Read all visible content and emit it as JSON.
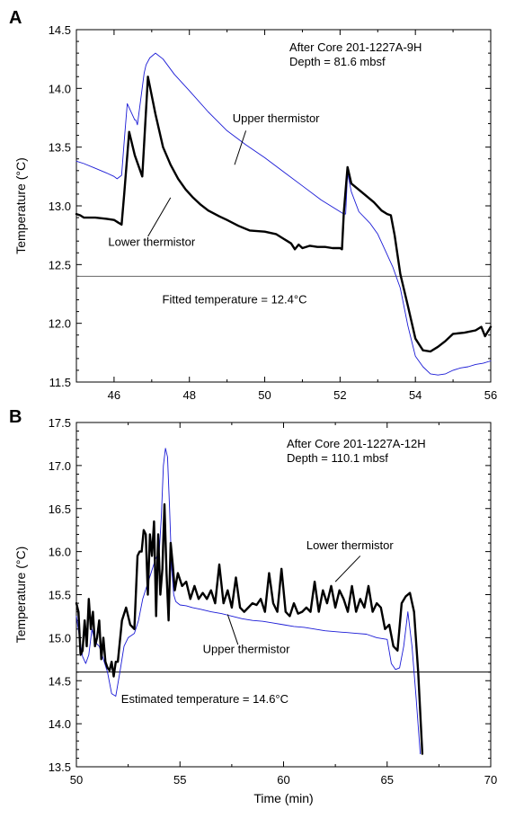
{
  "chart_data": [
    {
      "type": "line",
      "panel_label": "A",
      "ylabel": "Temperature (°C)",
      "xlabel": "",
      "xlim": [
        45,
        56
      ],
      "ylim": [
        11.5,
        14.5
      ],
      "xticks": [
        46,
        48,
        50,
        52,
        54,
        56
      ],
      "yticks": [
        11.5,
        12.0,
        12.5,
        13.0,
        13.5,
        14.0,
        14.5
      ],
      "xtick_labels": [
        "46",
        "48",
        "50",
        "52",
        "54",
        "56"
      ],
      "ytick_labels": [
        "11.5",
        "12.0",
        "12.5",
        "13.0",
        "13.5",
        "14.0",
        "14.5"
      ],
      "info_lines": [
        "After Core 201-1227A-9H",
        "Depth = 81.6 mbsf"
      ],
      "grid": false,
      "reference_line": {
        "y": 12.4,
        "color": "#666666"
      },
      "annotations": [
        {
          "text": "Upper thermistor",
          "x": 50.3,
          "y": 13.71
        },
        {
          "text": "Lower thermistor",
          "x": 47.0,
          "y": 12.66
        },
        {
          "text": "Fitted temperature = 12.4°C",
          "x": 49.2,
          "y": 12.17
        }
      ],
      "leaders": [
        {
          "from": [
            49.5,
            13.64
          ],
          "to": [
            49.2,
            13.35
          ]
        },
        {
          "from": [
            46.9,
            12.74
          ],
          "to": [
            47.5,
            13.07
          ]
        }
      ],
      "series": [
        {
          "color": "#1a1ad6",
          "width": 0.9,
          "x": [
            45.0,
            45.2,
            45.5,
            45.8,
            46.0,
            46.08,
            46.2,
            46.27,
            46.35,
            46.55,
            46.58,
            46.62,
            46.8,
            46.85,
            46.95,
            47.1,
            47.3,
            47.6,
            48.0,
            48.5,
            49.0,
            49.5,
            50.0,
            50.5,
            51.0,
            51.5,
            52.0,
            52.1,
            52.15,
            52.2,
            52.3,
            52.5,
            52.8,
            53.0,
            53.2,
            53.4,
            53.6,
            53.8,
            54.0,
            54.2,
            54.4,
            54.6,
            54.8,
            55.0,
            55.2,
            55.4,
            55.6,
            55.8,
            56.0
          ],
          "y": [
            13.38,
            13.36,
            13.32,
            13.28,
            13.25,
            13.23,
            13.26,
            13.55,
            13.87,
            13.73,
            13.73,
            13.69,
            14.13,
            14.2,
            14.26,
            14.3,
            14.25,
            14.12,
            13.98,
            13.8,
            13.64,
            13.52,
            13.41,
            13.29,
            13.17,
            13.05,
            12.95,
            12.93,
            12.93,
            13.28,
            13.12,
            12.95,
            12.85,
            12.76,
            12.62,
            12.48,
            12.3,
            11.98,
            11.72,
            11.63,
            11.57,
            11.56,
            11.57,
            11.6,
            11.62,
            11.63,
            11.65,
            11.66,
            11.68
          ]
        },
        {
          "color": "#000000",
          "width": 2.4,
          "x": [
            45.0,
            45.1,
            45.2,
            45.5,
            45.8,
            46.0,
            46.1,
            46.2,
            46.27,
            46.4,
            46.55,
            46.75,
            46.9,
            47.1,
            47.3,
            47.5,
            47.7,
            47.9,
            48.1,
            48.3,
            48.5,
            48.8,
            49.0,
            49.3,
            49.6,
            50.0,
            50.3,
            50.5,
            50.6,
            50.7,
            50.8,
            50.9,
            51.0,
            51.2,
            51.4,
            51.6,
            51.8,
            52.0,
            52.05,
            52.1,
            52.2,
            52.3,
            52.6,
            52.9,
            53.1,
            53.25,
            53.35,
            53.45,
            53.6,
            53.8,
            54.0,
            54.2,
            54.4,
            54.6,
            54.8,
            55.0,
            55.3,
            55.6,
            55.75,
            55.85,
            56.0
          ],
          "y": [
            12.93,
            12.92,
            12.9,
            12.9,
            12.89,
            12.88,
            12.86,
            12.84,
            13.1,
            13.63,
            13.43,
            13.25,
            14.1,
            13.78,
            13.5,
            13.35,
            13.23,
            13.14,
            13.07,
            13.01,
            12.96,
            12.91,
            12.88,
            12.83,
            12.79,
            12.78,
            12.76,
            12.72,
            12.7,
            12.68,
            12.63,
            12.67,
            12.64,
            12.66,
            12.65,
            12.65,
            12.64,
            12.64,
            12.63,
            12.95,
            13.33,
            13.19,
            13.11,
            13.03,
            12.96,
            12.93,
            12.92,
            12.75,
            12.42,
            12.15,
            11.87,
            11.77,
            11.76,
            11.8,
            11.85,
            11.91,
            11.92,
            11.94,
            11.97,
            11.89,
            11.97
          ]
        }
      ]
    },
    {
      "type": "line",
      "panel_label": "B",
      "ylabel": "Temperature (°C)",
      "xlabel": "Time (min)",
      "xlim": [
        50,
        70
      ],
      "ylim": [
        13.5,
        17.5
      ],
      "xticks": [
        50,
        55,
        60,
        65,
        70
      ],
      "yticks": [
        13.5,
        14.0,
        14.5,
        15.0,
        15.5,
        16.0,
        16.5,
        17.0,
        17.5
      ],
      "xtick_labels": [
        "50",
        "55",
        "60",
        "65",
        "70"
      ],
      "ytick_labels": [
        "13.5",
        "14.0",
        "14.5",
        "15.0",
        "15.5",
        "16.0",
        "16.5",
        "17.0",
        "17.5"
      ],
      "info_lines": [
        "After Core 201-1227A-12H",
        "Depth = 110.1 mbsf"
      ],
      "grid": false,
      "reference_line": {
        "y": 14.6,
        "color": "#000000"
      },
      "annotations": [
        {
          "text": "Lower thermistor",
          "x": 63.2,
          "y": 16.03
        },
        {
          "text": "Upper thermistor",
          "x": 58.2,
          "y": 14.82
        },
        {
          "text": "Estimated temperature = 14.6°C",
          "x": 56.2,
          "y": 14.24
        }
      ],
      "leaders": [
        {
          "from": [
            63.7,
            15.95
          ],
          "to": [
            62.5,
            15.65
          ]
        },
        {
          "from": [
            57.8,
            14.92
          ],
          "to": [
            57.3,
            15.27
          ]
        }
      ],
      "series": [
        {
          "color": "#1a1ad6",
          "width": 0.9,
          "x": [
            50.0,
            50.15,
            50.3,
            50.45,
            50.6,
            50.75,
            50.9,
            51.1,
            51.3,
            51.5,
            51.7,
            51.9,
            52.1,
            52.3,
            52.5,
            52.8,
            53.0,
            53.2,
            53.4,
            53.6,
            53.8,
            54.0,
            54.1,
            54.2,
            54.3,
            54.4,
            54.5,
            54.6,
            54.7,
            54.8,
            54.9,
            55.0,
            55.3,
            55.6,
            56.0,
            56.5,
            57.0,
            57.5,
            58.0,
            58.5,
            59.0,
            59.5,
            60.0,
            60.5,
            61.0,
            61.5,
            62.0,
            62.5,
            63.0,
            63.5,
            64.0,
            64.5,
            65.0,
            65.2,
            65.4,
            65.6,
            65.8,
            66.0,
            66.2,
            66.4,
            66.6
          ],
          "y": [
            15.25,
            15.0,
            14.78,
            14.7,
            14.8,
            15.1,
            14.95,
            14.9,
            14.75,
            14.6,
            14.35,
            14.32,
            14.6,
            14.9,
            15.0,
            15.05,
            15.2,
            15.45,
            15.6,
            15.75,
            15.9,
            16.0,
            16.4,
            17.0,
            17.2,
            17.1,
            16.5,
            15.8,
            15.5,
            15.42,
            15.4,
            15.38,
            15.37,
            15.35,
            15.33,
            15.3,
            15.28,
            15.25,
            15.22,
            15.2,
            15.19,
            15.17,
            15.15,
            15.13,
            15.12,
            15.1,
            15.08,
            15.07,
            15.06,
            15.05,
            15.04,
            15.0,
            14.98,
            14.7,
            14.63,
            14.65,
            14.9,
            15.3,
            14.9,
            14.3,
            13.65
          ]
        },
        {
          "color": "#000000",
          "width": 2.4,
          "x": [
            50.0,
            50.1,
            50.2,
            50.3,
            50.4,
            50.5,
            50.6,
            50.7,
            50.8,
            50.9,
            51.0,
            51.1,
            51.2,
            51.3,
            51.4,
            51.5,
            51.6,
            51.7,
            51.8,
            51.9,
            52.0,
            52.2,
            52.4,
            52.6,
            52.8,
            52.95,
            53.05,
            53.15,
            53.25,
            53.35,
            53.45,
            53.55,
            53.65,
            53.75,
            53.85,
            53.95,
            54.05,
            54.15,
            54.25,
            54.35,
            54.45,
            54.55,
            54.65,
            54.75,
            54.9,
            55.1,
            55.3,
            55.5,
            55.7,
            55.9,
            56.1,
            56.3,
            56.5,
            56.7,
            56.9,
            57.1,
            57.3,
            57.5,
            57.7,
            57.9,
            58.1,
            58.3,
            58.5,
            58.7,
            58.9,
            59.1,
            59.3,
            59.5,
            59.7,
            59.9,
            60.1,
            60.3,
            60.5,
            60.7,
            60.9,
            61.1,
            61.3,
            61.5,
            61.7,
            61.9,
            62.1,
            62.3,
            62.5,
            62.7,
            62.9,
            63.1,
            63.3,
            63.5,
            63.7,
            63.9,
            64.1,
            64.3,
            64.5,
            64.7,
            64.9,
            65.1,
            65.3,
            65.5,
            65.7,
            65.9,
            66.1,
            66.3,
            66.5,
            66.7
          ],
          "y": [
            15.4,
            15.3,
            14.8,
            14.85,
            15.2,
            14.9,
            15.45,
            15.1,
            15.3,
            14.9,
            15.0,
            15.2,
            14.75,
            15.0,
            14.72,
            14.65,
            14.62,
            14.72,
            14.55,
            14.72,
            14.72,
            15.2,
            15.35,
            15.15,
            15.1,
            15.95,
            16.0,
            16.0,
            16.25,
            16.2,
            15.5,
            16.2,
            15.95,
            16.35,
            15.25,
            16.2,
            15.5,
            15.8,
            16.55,
            15.75,
            15.2,
            16.1,
            15.85,
            15.55,
            15.75,
            15.6,
            15.65,
            15.45,
            15.6,
            15.45,
            15.52,
            15.45,
            15.55,
            15.4,
            15.85,
            15.4,
            15.55,
            15.35,
            15.7,
            15.35,
            15.3,
            15.35,
            15.4,
            15.38,
            15.45,
            15.3,
            15.75,
            15.4,
            15.3,
            15.8,
            15.3,
            15.25,
            15.4,
            15.28,
            15.3,
            15.35,
            15.3,
            15.65,
            15.3,
            15.55,
            15.4,
            15.6,
            15.35,
            15.55,
            15.45,
            15.3,
            15.6,
            15.3,
            15.45,
            15.35,
            15.6,
            15.3,
            15.4,
            15.35,
            15.1,
            15.15,
            14.9,
            14.85,
            15.4,
            15.48,
            15.52,
            15.3,
            14.6,
            13.65
          ]
        }
      ]
    }
  ]
}
